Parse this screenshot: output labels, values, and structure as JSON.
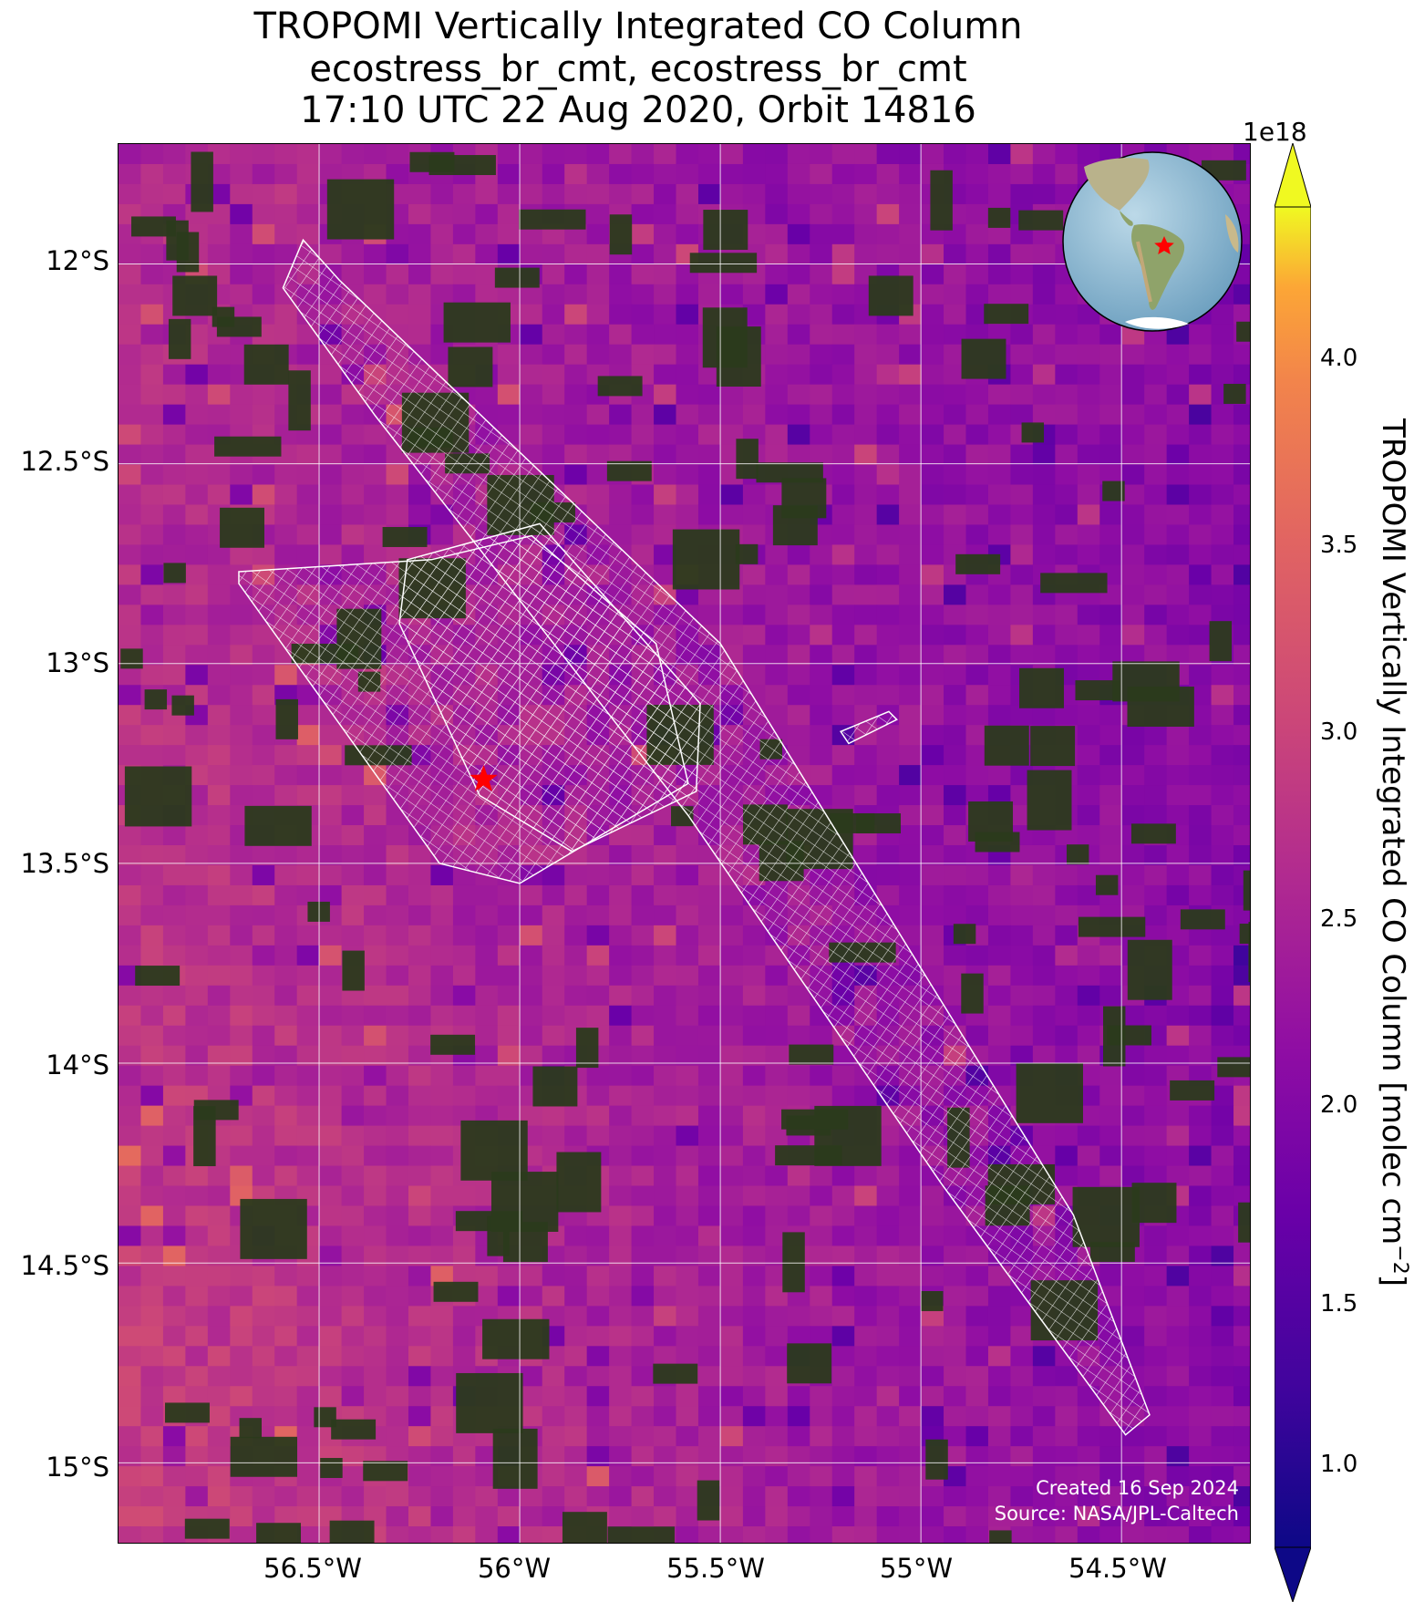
{
  "title": {
    "line1": "TROPOMI Vertically Integrated CO Column",
    "line2": "ecostress_br_cmt, ecostress_br_cmt",
    "line3": "17:10 UTC 22 Aug 2020, Orbit 14816"
  },
  "axes": {
    "y_ticks": [
      "12°S",
      "12.5°S",
      "13°S",
      "13.5°S",
      "14°S",
      "14.5°S",
      "15°S"
    ],
    "x_ticks": [
      "56.5°W",
      "56°W",
      "55.5°W",
      "55°W",
      "54.5°W"
    ],
    "lat_values": [
      -12,
      -12.5,
      -13,
      -13.5,
      -14,
      -14.5,
      -15
    ],
    "lon_values": [
      -56.5,
      -56,
      -55.5,
      -55,
      -54.5
    ],
    "lon_range": [
      -57.0,
      -54.18
    ],
    "lat_range": [
      -11.7,
      -15.2
    ]
  },
  "colorbar": {
    "label": "TROPOMI Vertically Integrated CO Column [molec cm",
    "label_sup": "−2",
    "label_end": "]",
    "exponent": "1e18",
    "ticks": [
      "1.0",
      "1.5",
      "2.0",
      "2.5",
      "3.0",
      "3.5",
      "4.0"
    ],
    "tick_values": [
      1.0,
      1.5,
      2.0,
      2.5,
      3.0,
      3.5,
      4.0
    ],
    "range": [
      1.0,
      4.2
    ],
    "colormap": "plasma",
    "extend": "both"
  },
  "site_marker": {
    "symbol": "star",
    "color": "#ff0000",
    "lon": -56.09,
    "lat": -13.29
  },
  "inset": {
    "type": "globe",
    "marker_color": "#ff0000"
  },
  "credits": {
    "created": "Created 16 Sep 2024",
    "source": "Source: NASA/JPL-Caltech"
  },
  "colors": {
    "forest": "#2b3a1c",
    "grid": "#ffffff",
    "swath_outline": "#ffffff"
  }
}
